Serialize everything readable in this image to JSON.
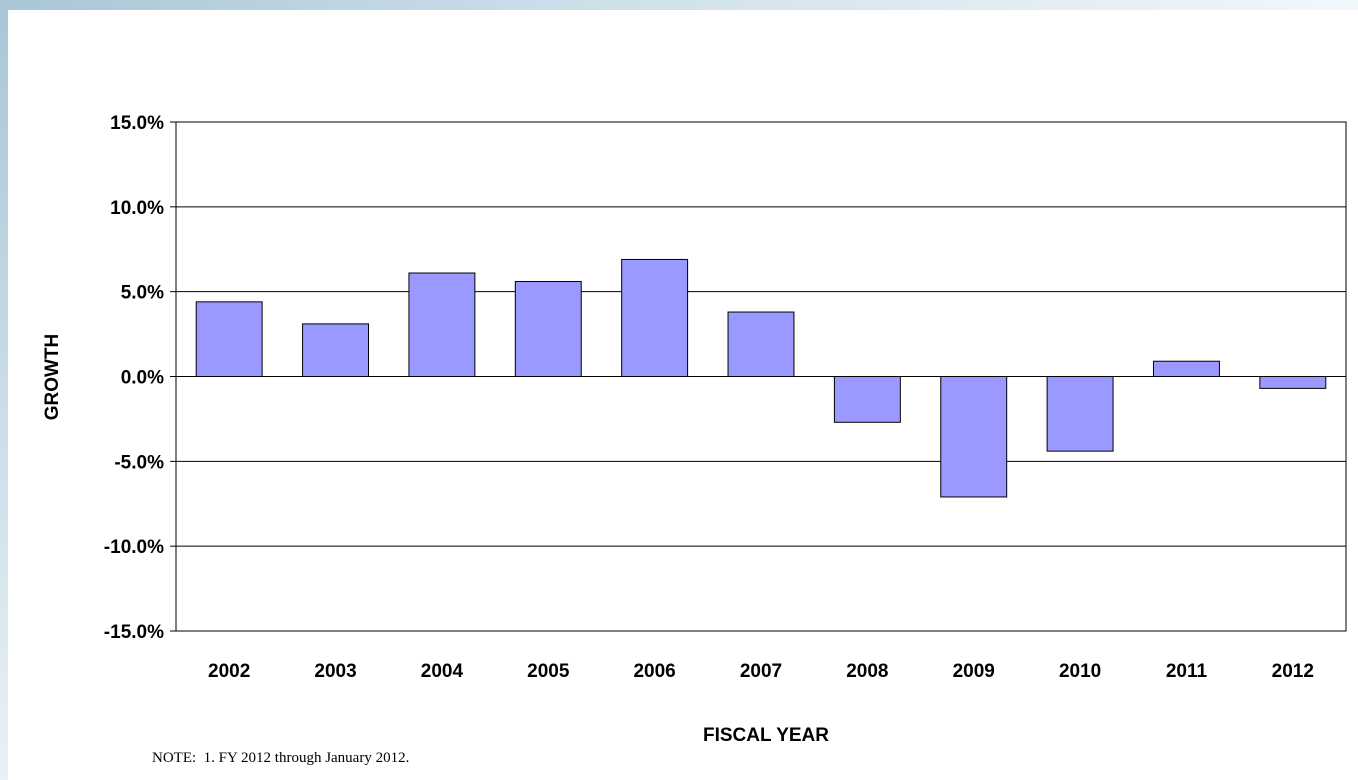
{
  "chart_data": {
    "type": "bar",
    "categories": [
      "2002",
      "2003",
      "2004",
      "2005",
      "2006",
      "2007",
      "2008",
      "2009",
      "2010",
      "2011",
      "2012"
    ],
    "values": [
      4.4,
      3.1,
      6.1,
      5.6,
      6.9,
      3.8,
      -2.7,
      -7.1,
      -4.4,
      0.9,
      -0.7
    ],
    "xlabel": "FISCAL YEAR",
    "ylabel": "GROWTH",
    "ylim": [
      -15,
      15
    ],
    "yticks": [
      "15.0%",
      "10.0%",
      "5.0%",
      "0.0%",
      "-5.0%",
      "-10.0%",
      "-15.0%"
    ],
    "grid": true,
    "legend": "none",
    "bar_color": "#9999ff",
    "bar_edge_color": "#000000"
  },
  "note": "NOTE:  1. FY 2012 through January 2012."
}
